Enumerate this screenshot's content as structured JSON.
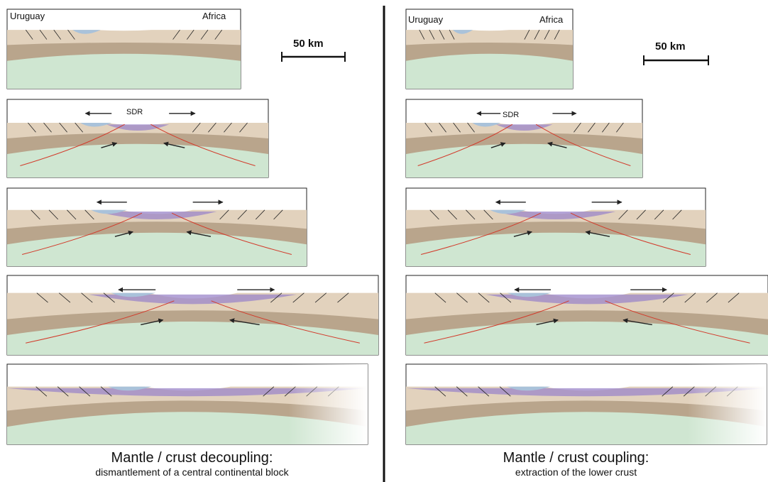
{
  "labels": {
    "left_margin": "Uruguay",
    "right_margin": "Africa",
    "sdr": "SDR"
  },
  "scale_bar": {
    "label": "50 km"
  },
  "columns": [
    {
      "title": "Mantle / crust decoupling:",
      "subtitle": "dismantlement of a central continental block"
    },
    {
      "title": "Mantle / crust coupling:",
      "subtitle": "extraction of the lower crust"
    }
  ],
  "colors": {
    "upper_crust": "#e2d2bd",
    "lower_crust": "#b9a58c",
    "mantle": "#cfe6d1",
    "magmatic": "#9b86c9",
    "sediment": "#a9c2da",
    "fault": "#d23a2a",
    "line": "#222222"
  }
}
